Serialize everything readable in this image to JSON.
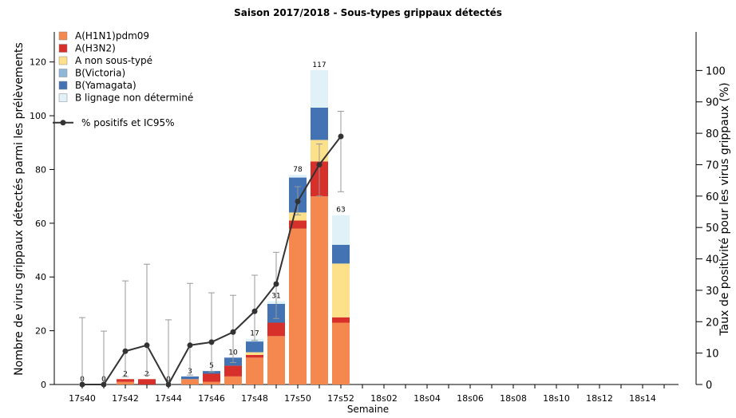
{
  "chart_data": {
    "type": "stacked-bar-line",
    "title": "Saison 2017/2018 - Sous-types grippaux détectés",
    "x_label": "Semaine",
    "y_label": "Nombre de virus grippaux détectés parmi les prélèvements",
    "y2_label": "Taux de positivité pour les virus grippaux (%)",
    "categories": [
      "17s40",
      null,
      "17s42",
      null,
      "17s44",
      null,
      "17s46",
      null,
      "17s48",
      null,
      "17s50",
      null,
      "17s52",
      null,
      "18s02",
      null,
      "18s04",
      null,
      "18s06",
      null,
      "18s08",
      null,
      "18s10",
      null,
      "18s12",
      null,
      "18s14",
      null
    ],
    "series": [
      {
        "name": "A(H1N1)pdm09",
        "color": "#f4884f",
        "values": [
          0,
          0,
          1,
          0,
          0,
          2,
          1,
          3,
          10,
          18,
          58,
          70,
          23,
          null,
          null,
          null,
          null,
          null,
          null,
          null,
          null,
          null,
          null,
          null,
          null,
          null,
          null,
          null
        ]
      },
      {
        "name": "A(H3N2)",
        "color": "#d7302a",
        "values": [
          0,
          0,
          1,
          2,
          0,
          0,
          3,
          4,
          1,
          5,
          3,
          13,
          2,
          null,
          null,
          null,
          null,
          null,
          null,
          null,
          null,
          null,
          null,
          null,
          null,
          null,
          null,
          null
        ]
      },
      {
        "name": "A non sous-typé",
        "color": "#fde08a",
        "values": [
          0,
          0,
          0,
          0,
          0,
          0,
          0,
          0,
          1,
          0,
          3,
          8,
          20,
          null,
          null,
          null,
          null,
          null,
          null,
          null,
          null,
          null,
          null,
          null,
          null,
          null,
          null,
          null
        ]
      },
      {
        "name": "B(Victoria)",
        "color": "#8fb7d8",
        "values": [
          0,
          0,
          0,
          0,
          0,
          0,
          0,
          0,
          0,
          0,
          0,
          0,
          0,
          null,
          null,
          null,
          null,
          null,
          null,
          null,
          null,
          null,
          null,
          null,
          null,
          null,
          null,
          null
        ]
      },
      {
        "name": "B(Yamagata)",
        "color": "#4473b4",
        "values": [
          0,
          0,
          0,
          0,
          0,
          1,
          1,
          3,
          4,
          7,
          13,
          12,
          7,
          null,
          null,
          null,
          null,
          null,
          null,
          null,
          null,
          null,
          null,
          null,
          null,
          null,
          null,
          null
        ]
      },
      {
        "name": "B lignage non déterminé",
        "color": "#e0f2f8",
        "values": [
          0,
          0,
          0,
          0,
          0,
          0,
          0,
          0,
          1,
          1,
          1,
          14,
          11,
          null,
          null,
          null,
          null,
          null,
          null,
          null,
          null,
          null,
          null,
          null,
          null,
          null,
          null,
          null
        ]
      }
    ],
    "totals": [
      0,
      0,
      2,
      2,
      0,
      3,
      5,
      10,
      17,
      31,
      78,
      117,
      63,
      null,
      null,
      null,
      null,
      null,
      null,
      null,
      null,
      null,
      null,
      null,
      null,
      null,
      null,
      null
    ],
    "line": {
      "name": "% positifs et IC95%",
      "color": "#333333",
      "axis": "y2",
      "values": [
        0,
        0,
        10.6,
        12.5,
        0,
        12.5,
        13.5,
        16.7,
        23.3,
        32,
        58.3,
        70,
        79,
        null,
        null,
        null,
        null,
        null,
        null,
        null,
        null,
        null,
        null,
        null,
        null,
        null,
        null,
        null
      ],
      "ci_low": [
        0,
        0,
        2.5,
        3,
        0,
        3,
        4,
        7,
        14,
        21,
        54,
        60,
        61.4,
        null,
        null,
        null,
        null,
        null,
        null,
        null,
        null,
        null,
        null,
        null,
        null,
        null,
        null,
        null
      ],
      "ci_high": [
        21.3,
        17,
        33,
        38.3,
        20.6,
        32.2,
        29.2,
        28.4,
        34.8,
        42.1,
        63,
        76.6,
        87,
        null,
        null,
        null,
        null,
        null,
        null,
        null,
        null,
        null,
        null,
        null,
        null,
        null,
        null,
        null
      ]
    },
    "ylim": [
      0,
      130
    ],
    "yticks": [
      0,
      20,
      40,
      60,
      80,
      100,
      120
    ],
    "y2lim": [
      0,
      110
    ],
    "y2ticks": [
      0,
      10,
      20,
      30,
      40,
      50,
      60,
      70,
      80,
      90,
      100
    ]
  }
}
